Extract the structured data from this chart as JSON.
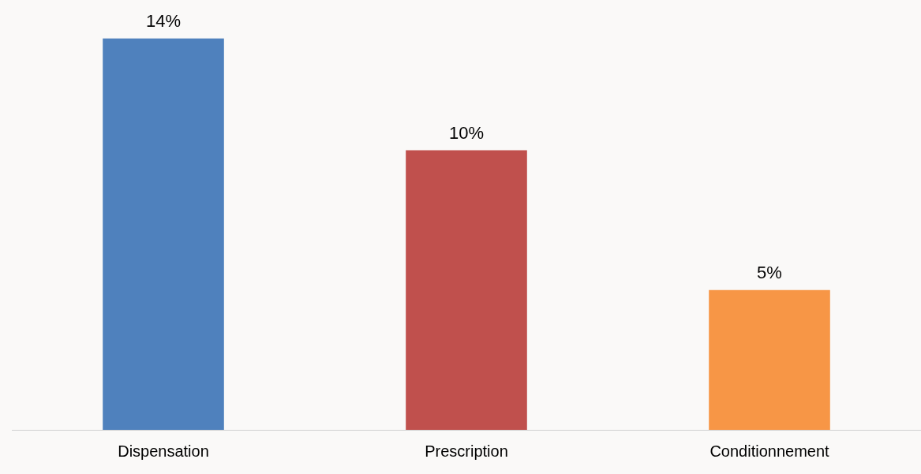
{
  "chart_data": {
    "type": "bar",
    "categories": [
      "Dispensation",
      "Prescription",
      "Conditionnement"
    ],
    "values": [
      14,
      10,
      5
    ],
    "colors": [
      "#4f81bd",
      "#c0504d",
      "#f79646"
    ],
    "value_labels": [
      "14%",
      "10%",
      "5%"
    ],
    "grid": false,
    "legend": false
  }
}
